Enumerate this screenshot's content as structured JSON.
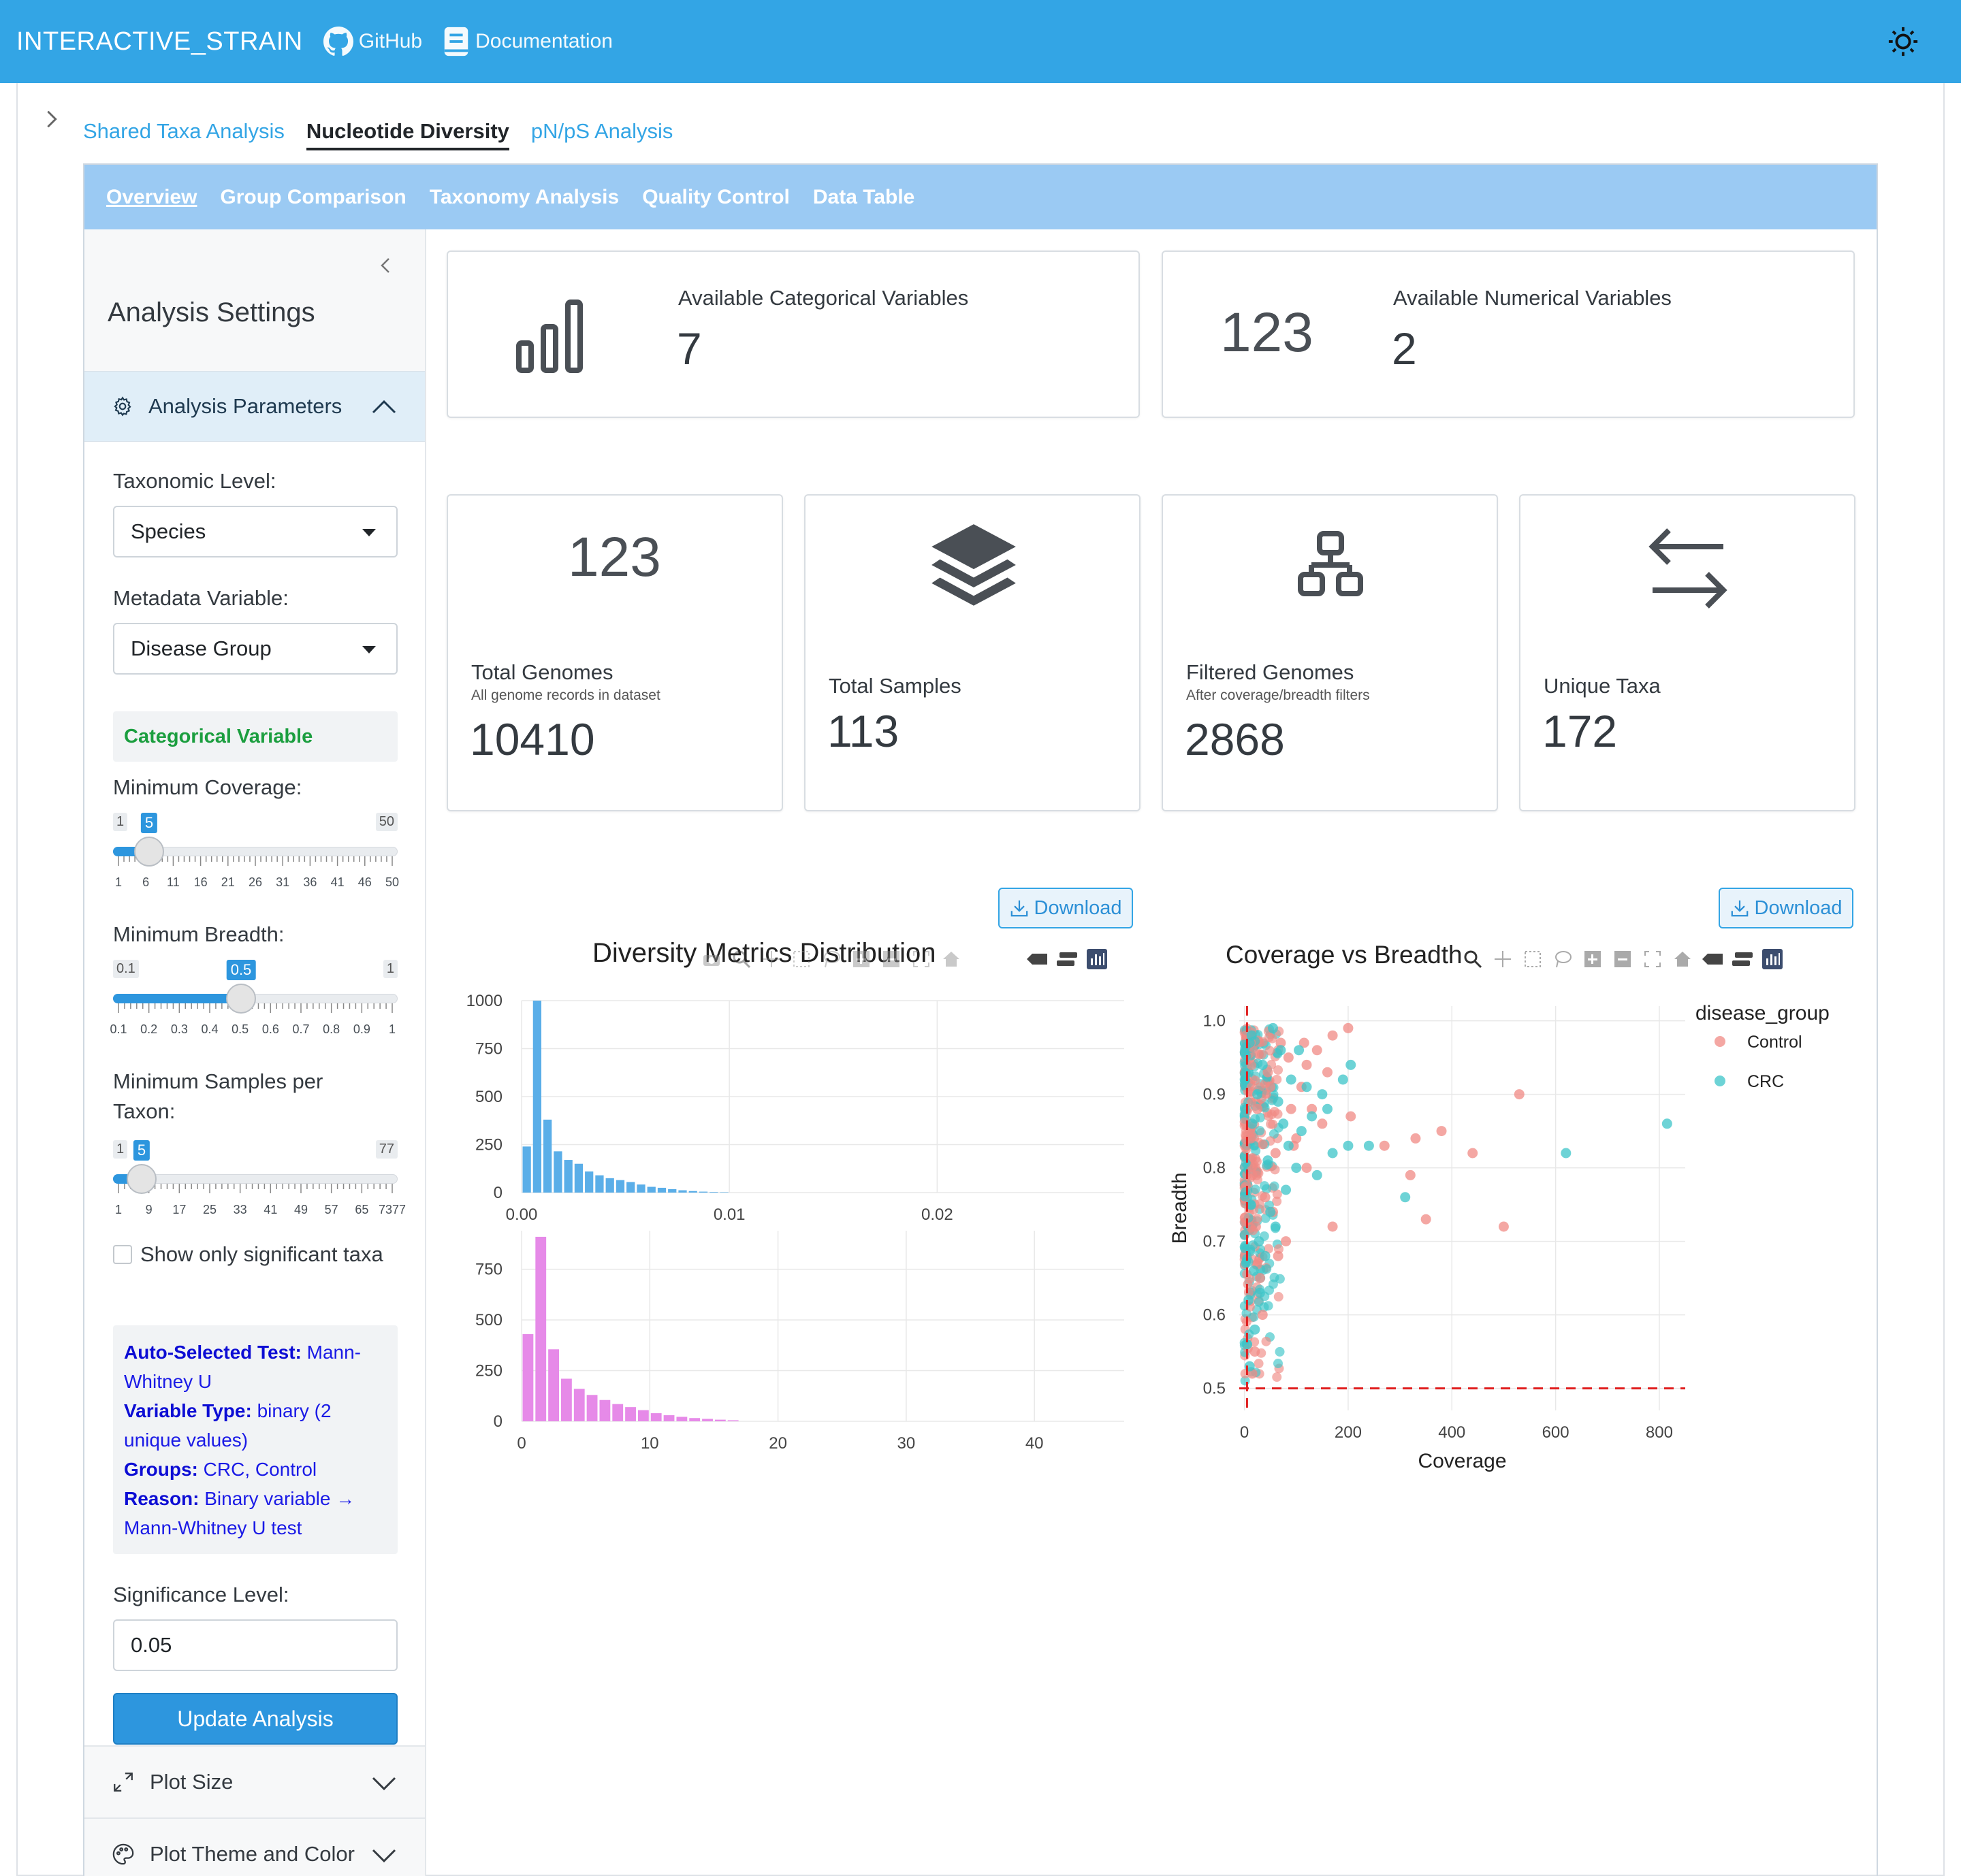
{
  "navbar": {
    "brand": "INTERACTIVE_STRAIN",
    "github": "GitHub",
    "docs": "Documentation"
  },
  "main_tabs": [
    "Shared Taxa Analysis",
    "Nucleotide Diversity",
    "pN/pS Analysis"
  ],
  "active_main_tab": "Nucleotide Diversity",
  "sub_tabs": [
    "Overview",
    "Group Comparison",
    "Taxonomy Analysis",
    "Quality Control",
    "Data Table"
  ],
  "active_sub_tab": "Overview",
  "sidebar": {
    "title": "Analysis Settings",
    "params_header": "Analysis Parameters",
    "taxonomic_level_label": "Taxonomic Level:",
    "taxonomic_level_value": "Species",
    "metadata_label": "Metadata Variable:",
    "metadata_value": "Disease Group",
    "variable_kind": "Categorical Variable",
    "min_coverage": {
      "label": "Minimum Coverage:",
      "min": "1",
      "max": "50",
      "value": "5",
      "fraction": 0.0816,
      "ticks": [
        "1",
        "6",
        "11",
        "16",
        "21",
        "26",
        "31",
        "36",
        "41",
        "46",
        "50"
      ]
    },
    "min_breadth": {
      "label": "Minimum Breadth:",
      "min": "0.1",
      "max": "1",
      "value": "0.5",
      "fraction": 0.444,
      "ticks": [
        "0.1",
        "0.2",
        "0.3",
        "0.4",
        "0.5",
        "0.6",
        "0.7",
        "0.8",
        "0.9",
        "1"
      ]
    },
    "min_samples": {
      "label_line1": "Minimum Samples per",
      "label_line2": "Taxon:",
      "min": "1",
      "max": "77",
      "value": "5",
      "fraction": 0.0526,
      "ticks": [
        "1",
        "9",
        "17",
        "25",
        "33",
        "41",
        "49",
        "57",
        "65",
        "7377"
      ]
    },
    "significant_only": "Show only significant taxa",
    "test_info": {
      "test_key": "Auto-Selected Test:",
      "test_val_1": "Mann-",
      "test_val_2": "Whitney U",
      "type_key": "Variable Type:",
      "type_val_1": "binary (2",
      "type_val_2": "unique values)",
      "groups_key": "Groups:",
      "groups_val": "CRC, Control",
      "reason_key": "Reason:",
      "reason_val_1": "Binary variable →",
      "reason_val_2": "Mann-Whitney U test"
    },
    "significance_label": "Significance Level:",
    "significance_value": "0.05",
    "update_button": "Update Analysis",
    "plot_size": "Plot Size",
    "plot_theme": "Plot Theme and Color"
  },
  "value_boxes": {
    "categorical": {
      "caption": "Available Categorical Variables",
      "value": "7"
    },
    "numerical": {
      "caption": "Available Numerical Variables",
      "value": "2",
      "icon_text": "123"
    },
    "total_genomes": {
      "caption": "Total Genomes",
      "sub": "All genome records in dataset",
      "value": "10410",
      "icon_text": "123"
    },
    "total_samples": {
      "caption": "Total Samples",
      "value": "113"
    },
    "filtered_genomes": {
      "caption": "Filtered Genomes",
      "sub": "After coverage/breadth filters",
      "value": "2868"
    },
    "unique_taxa": {
      "caption": "Unique Taxa",
      "value": "172"
    }
  },
  "download_label": "Download",
  "colors": {
    "primary": "#33a5e5",
    "hist_top": "#5aaee8",
    "hist_bottom": "#e68ae8",
    "control": "#f08a84",
    "crc": "#3cc4c8",
    "threshold": "#e02020"
  },
  "chart_data": [
    {
      "type": "bar",
      "title": "Diversity Metrics Distribution",
      "panels": [
        {
          "name": "",
          "x": [
            0.0,
            0.0005,
            0.001,
            0.0015,
            0.002,
            0.0025,
            0.003,
            0.0035,
            0.004,
            0.0045,
            0.005,
            0.0055,
            0.006,
            0.0065,
            0.007,
            0.0075,
            0.008,
            0.0085,
            0.009,
            0.0095
          ],
          "values": [
            240,
            1000,
            380,
            215,
            170,
            150,
            110,
            90,
            75,
            65,
            55,
            42,
            30,
            25,
            18,
            12,
            8,
            5,
            3,
            2
          ],
          "xticks": [
            "0.00",
            "0.01",
            "0.02"
          ],
          "xlim": [
            0.0,
            0.029
          ],
          "yticks": [
            "0",
            "250",
            "500",
            "750",
            "1000"
          ],
          "ylim": [
            0,
            1000
          ]
        },
        {
          "name": "",
          "x": [
            0,
            1,
            2,
            3,
            4,
            5,
            6,
            7,
            8,
            9,
            10,
            11,
            12,
            13,
            14,
            15,
            16
          ],
          "values": [
            430,
            910,
            355,
            210,
            160,
            130,
            105,
            85,
            70,
            55,
            40,
            30,
            22,
            16,
            12,
            8,
            5
          ],
          "xticks": [
            "0",
            "10",
            "20",
            "30",
            "40"
          ],
          "xlim": [
            0,
            47
          ],
          "yticks": [
            "0",
            "250",
            "500",
            "750"
          ],
          "ylim": [
            0,
            940
          ]
        }
      ]
    },
    {
      "type": "scatter",
      "title": "Coverage vs Breadth",
      "xlabel": "Coverage",
      "ylabel": "Breadth",
      "xlim": [
        -10,
        850
      ],
      "ylim": [
        0.47,
        1.02
      ],
      "xticks": [
        "0",
        "200",
        "400",
        "600",
        "800"
      ],
      "yticks": [
        "0.5",
        "0.6",
        "0.7",
        "0.8",
        "0.9",
        "1.0"
      ],
      "legend_title": "disease_group",
      "thresholds": {
        "x": 5,
        "y": 0.5
      },
      "series": [
        {
          "name": "Control",
          "points": [
            [
              200,
              0.99
            ],
            [
              170,
              0.98
            ],
            [
              140,
              0.96
            ],
            [
              120,
              0.94
            ],
            [
              110,
              0.91
            ],
            [
              90,
              0.88
            ],
            [
              150,
              0.86
            ],
            [
              100,
              0.84
            ],
            [
              120,
              0.8
            ],
            [
              60,
              0.82
            ],
            [
              40,
              0.76
            ],
            [
              170,
              0.72
            ],
            [
              80,
              0.7
            ],
            [
              30,
              0.65
            ],
            [
              20,
              0.55
            ],
            [
              330,
              0.84
            ],
            [
              380,
              0.85
            ],
            [
              270,
              0.83
            ],
            [
              320,
              0.79
            ],
            [
              350,
              0.73
            ],
            [
              440,
              0.82
            ],
            [
              530,
              0.9
            ],
            [
              500,
              0.72
            ],
            [
              205,
              0.87
            ],
            [
              160,
              0.93
            ],
            [
              70,
              0.97
            ],
            [
              50,
              0.91
            ],
            [
              25,
              0.88
            ],
            [
              15,
              0.79
            ],
            [
              55,
              0.74
            ],
            [
              95,
              0.83
            ],
            [
              130,
              0.88
            ],
            [
              65,
              0.68
            ],
            [
              35,
              0.6
            ],
            [
              15,
              0.52
            ],
            [
              45,
              0.93
            ],
            [
              85,
              0.95
            ],
            [
              115,
              0.97
            ],
            [
              22,
              0.72
            ],
            [
              12,
              0.84
            ]
          ]
        },
        {
          "name": "CRC",
          "points": [
            [
              205,
              0.94
            ],
            [
              190,
              0.92
            ],
            [
              150,
              0.9
            ],
            [
              130,
              0.87
            ],
            [
              110,
              0.85
            ],
            [
              200,
              0.83
            ],
            [
              240,
              0.83
            ],
            [
              310,
              0.76
            ],
            [
              620,
              0.82
            ],
            [
              815,
              0.86
            ],
            [
              100,
              0.8
            ],
            [
              80,
              0.77
            ],
            [
              60,
              0.72
            ],
            [
              40,
              0.68
            ],
            [
              30,
              0.63
            ],
            [
              20,
              0.58
            ],
            [
              10,
              0.53
            ],
            [
              170,
              0.82
            ],
            [
              140,
              0.79
            ],
            [
              90,
              0.92
            ],
            [
              70,
              0.96
            ],
            [
              55,
              0.99
            ],
            [
              35,
              0.94
            ],
            [
              25,
              0.9
            ],
            [
              15,
              0.86
            ],
            [
              45,
              0.81
            ],
            [
              75,
              0.86
            ],
            [
              120,
              0.91
            ],
            [
              160,
              0.88
            ],
            [
              10,
              0.97
            ],
            [
              12,
              0.75
            ],
            [
              18,
              0.66
            ],
            [
              8,
              0.62
            ],
            [
              28,
              0.7
            ],
            [
              50,
              0.74
            ],
            [
              65,
              0.89
            ],
            [
              85,
              0.83
            ],
            [
              105,
              0.96
            ],
            [
              5,
              0.56
            ],
            [
              14,
              0.98
            ]
          ]
        }
      ]
    }
  ]
}
